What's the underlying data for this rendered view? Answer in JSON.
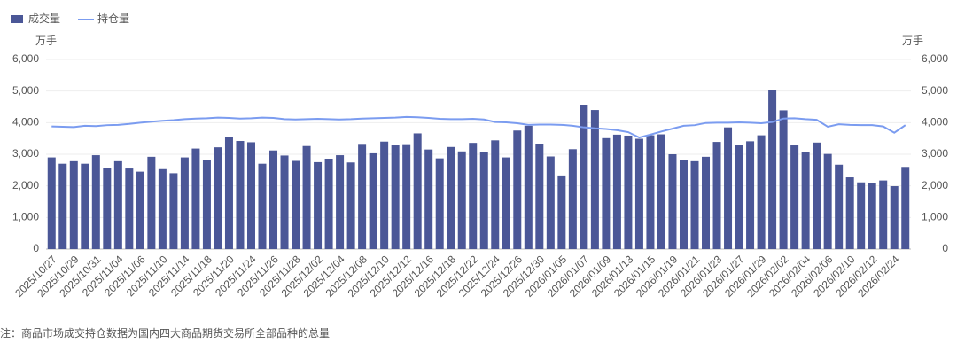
{
  "chart_data": {
    "type": "bar_line",
    "y_unit": "万手",
    "y2_unit": "万手",
    "note": "注：商品市场成交持仓数据为国内四大商品期货交易所全部品种的总量",
    "categories": [
      "2025/10/27",
      null,
      "2025/10/29",
      null,
      "2025/10/31",
      null,
      "2025/11/04",
      null,
      "2025/11/06",
      null,
      "2025/11/10",
      null,
      "2025/11/14",
      null,
      "2025/11/18",
      null,
      "2025/11/20",
      null,
      "2025/11/24",
      null,
      "2025/11/26",
      null,
      "2025/11/28",
      null,
      "2025/12/02",
      null,
      "2025/12/04",
      null,
      "2025/12/08",
      null,
      "2025/12/10",
      null,
      "2025/12/12",
      null,
      "2025/12/16",
      null,
      "2025/12/18",
      null,
      "2025/12/22",
      null,
      "2025/12/24",
      null,
      "2025/12/26",
      null,
      "2025/12/30",
      null,
      "2026/01/05",
      null,
      "2026/01/07",
      null,
      "2026/01/09",
      null,
      "2026/01/13",
      null,
      "2026/01/15",
      null,
      "2026/01/19",
      null,
      "2026/01/21",
      null,
      "2026/01/23",
      null,
      "2026/01/27",
      null,
      "2026/01/29",
      null,
      "2026/02/02",
      null,
      "2026/02/04",
      null,
      "2026/02/06",
      null,
      "2026/02/10",
      null,
      "2026/02/12",
      null,
      "2026/02/24",
      null
    ],
    "series": [
      {
        "name": "成交量",
        "type": "bar",
        "color": "#4b5797",
        "values": [
          2900,
          2700,
          2780,
          2700,
          2970,
          2560,
          2780,
          2550,
          2450,
          2920,
          2530,
          2400,
          2900,
          3180,
          2820,
          3220,
          3550,
          3420,
          3380,
          2700,
          3120,
          2960,
          2790,
          3260,
          2750,
          2860,
          2970,
          2740,
          3300,
          3030,
          3400,
          3280,
          3290,
          3660,
          3150,
          2870,
          3230,
          3090,
          3360,
          3080,
          3440,
          2900,
          3750,
          3900,
          3320,
          2930,
          2330,
          3160,
          4560,
          4400,
          3510,
          3620,
          3590,
          3490,
          3600,
          3630,
          3000,
          2810,
          2780,
          2920,
          3390,
          3850,
          3280,
          3410,
          3600,
          5020,
          4390,
          3280,
          3070,
          3370,
          3010,
          2670,
          2270,
          2110,
          2080,
          2170,
          1990,
          2600
        ]
      },
      {
        "name": "持仓量",
        "type": "line",
        "axis": "y2",
        "color": "#7b9cf0",
        "values": [
          3880,
          3870,
          3860,
          3900,
          3890,
          3920,
          3930,
          3960,
          4000,
          4030,
          4060,
          4080,
          4110,
          4130,
          4140,
          4160,
          4150,
          4130,
          4140,
          4160,
          4150,
          4110,
          4100,
          4110,
          4120,
          4110,
          4100,
          4110,
          4130,
          4140,
          4150,
          4160,
          4180,
          4170,
          4150,
          4120,
          4110,
          4110,
          4120,
          4100,
          4020,
          4010,
          3980,
          3930,
          3940,
          3940,
          3930,
          3900,
          3850,
          3820,
          3800,
          3760,
          3700,
          3530,
          3620,
          3720,
          3810,
          3900,
          3920,
          3990,
          4000,
          4000,
          4010,
          4000,
          3980,
          4020,
          4130,
          4140,
          4110,
          4090,
          3870,
          3950,
          3930,
          3920,
          3920,
          3880,
          3680,
          3920
        ]
      }
    ],
    "ylim": [
      0,
      6000
    ],
    "yticks": [
      0,
      {
        "value": 1000,
        "label": "1,000"
      },
      {
        "value": 2000,
        "label": "2,000"
      },
      {
        "value": 3000,
        "label": "3,000"
      },
      {
        "value": 4000,
        "label": "4,000"
      },
      {
        "value": 5000,
        "label": "5,000"
      },
      {
        "value": 6000,
        "label": "6,000"
      }
    ],
    "y2lim": [
      0,
      6000
    ],
    "y2ticks": [
      0,
      {
        "value": 1000,
        "label": "1,000"
      },
      {
        "value": 2000,
        "label": "2,000"
      },
      {
        "value": 3000,
        "label": "3,000"
      },
      {
        "value": 4000,
        "label": "4,000"
      },
      {
        "value": 5000,
        "label": "5,000"
      },
      {
        "value": 6000,
        "label": "6,000"
      }
    ],
    "grid": true,
    "legend": "top-left"
  }
}
